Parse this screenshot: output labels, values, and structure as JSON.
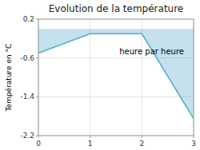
{
  "chart_data": {
    "type": "area",
    "title": "Evolution de la température",
    "ylabel": "Température en °C",
    "annotations": [
      "heure par heure"
    ],
    "x": [
      0,
      1,
      2,
      3
    ],
    "values": [
      -0.5,
      -0.1,
      -0.1,
      -1.85
    ],
    "color": "#55aacc",
    "xlim": [
      0,
      3
    ],
    "ylim": [
      -2.2,
      0.2
    ],
    "xticks": [
      0,
      1,
      2,
      3
    ],
    "yticks": [
      0.2,
      -0.6,
      -1.4,
      -2.2
    ],
    "grid": true
  }
}
